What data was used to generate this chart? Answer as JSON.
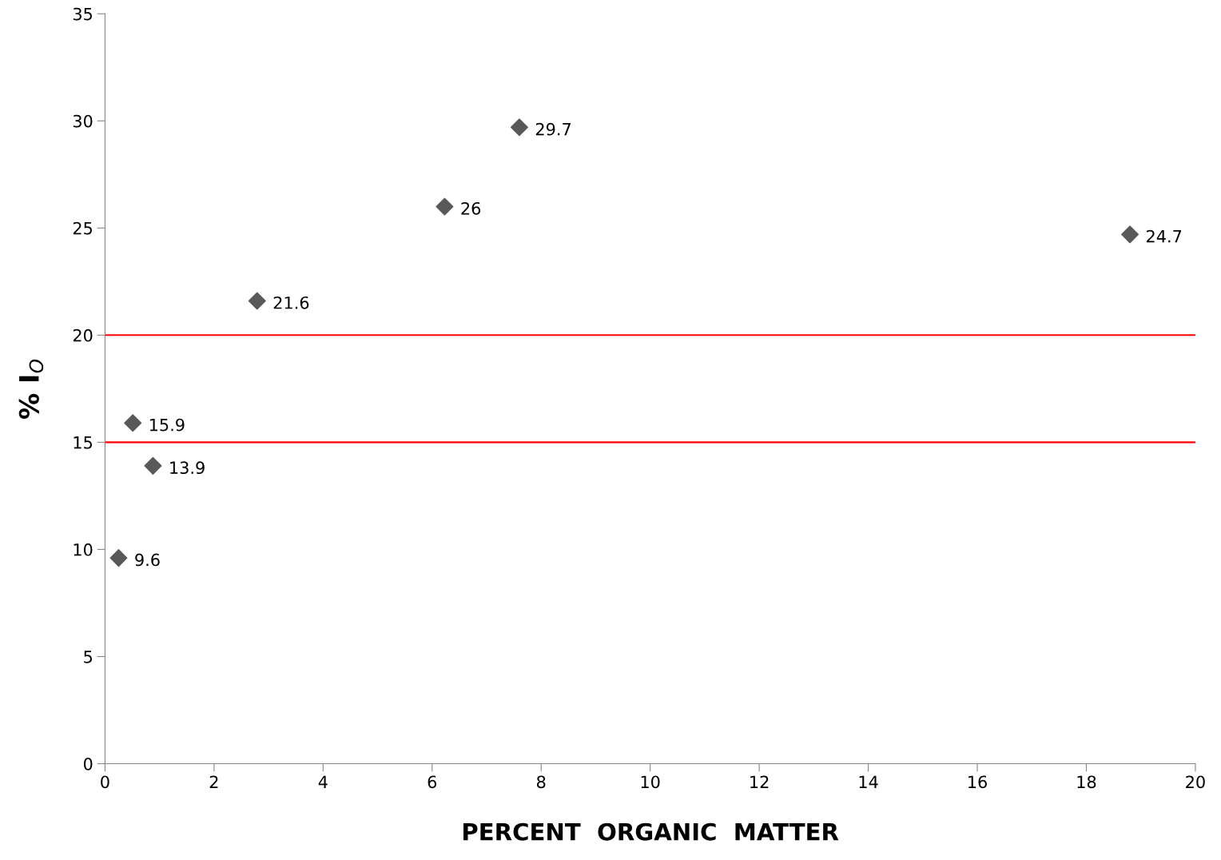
{
  "chart_data": {
    "type": "scatter",
    "xlabel": "PERCENT  ORGANIC  MATTER",
    "ylabel": "% I$_{O}$",
    "x": [
      0.25,
      0.51,
      0.88,
      2.79,
      6.23,
      7.6,
      18.8
    ],
    "series": [
      {
        "color": "#595959",
        "values": [
          9.6,
          15.9,
          13.9,
          21.6,
          26,
          29.7,
          24.7
        ]
      }
    ],
    "marker": "diamond",
    "data_labels": true,
    "grid": false,
    "legend": false,
    "xlim": [
      0,
      20
    ],
    "xticks": [
      0,
      2,
      4,
      6,
      8,
      10,
      12,
      14,
      16,
      18,
      20
    ],
    "ylim": [
      0,
      35
    ],
    "yticks": [
      0,
      5,
      10,
      15,
      20,
      25,
      30,
      35
    ],
    "ref_lines": [
      {
        "axis": "y",
        "value": 20,
        "label": null,
        "color": "#ff0000"
      },
      {
        "axis": "y",
        "value": 15,
        "label": null,
        "color": "#ff0000"
      }
    ]
  }
}
